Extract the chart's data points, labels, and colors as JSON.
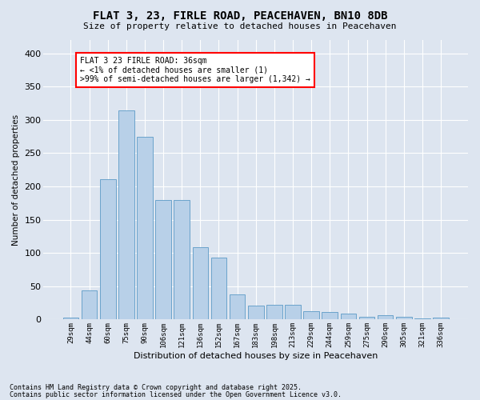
{
  "title": "FLAT 3, 23, FIRLE ROAD, PEACEHAVEN, BN10 8DB",
  "subtitle": "Size of property relative to detached houses in Peacehaven",
  "xlabel": "Distribution of detached houses by size in Peacehaven",
  "ylabel": "Number of detached properties",
  "categories": [
    "29sqm",
    "44sqm",
    "60sqm",
    "75sqm",
    "90sqm",
    "106sqm",
    "121sqm",
    "136sqm",
    "152sqm",
    "167sqm",
    "183sqm",
    "198sqm",
    "213sqm",
    "229sqm",
    "244sqm",
    "259sqm",
    "275sqm",
    "290sqm",
    "305sqm",
    "321sqm",
    "336sqm"
  ],
  "values": [
    3,
    44,
    211,
    314,
    274,
    179,
    179,
    109,
    93,
    38,
    21,
    22,
    22,
    13,
    11,
    9,
    4,
    6,
    4,
    2,
    3
  ],
  "bar_color": "#b8d0e8",
  "bar_edge_color": "#6ba3cc",
  "annotation_box_text": "FLAT 3 23 FIRLE ROAD: 36sqm\n← <1% of detached houses are smaller (1)\n>99% of semi-detached houses are larger (1,342) →",
  "annotation_box_color": "white",
  "annotation_box_edge_color": "red",
  "bg_color": "#dde5f0",
  "plot_bg_color": "#dde5f0",
  "grid_color": "white",
  "ylim": [
    0,
    420
  ],
  "yticks": [
    0,
    50,
    100,
    150,
    200,
    250,
    300,
    350,
    400
  ],
  "footer1": "Contains HM Land Registry data © Crown copyright and database right 2025.",
  "footer2": "Contains public sector information licensed under the Open Government Licence v3.0."
}
